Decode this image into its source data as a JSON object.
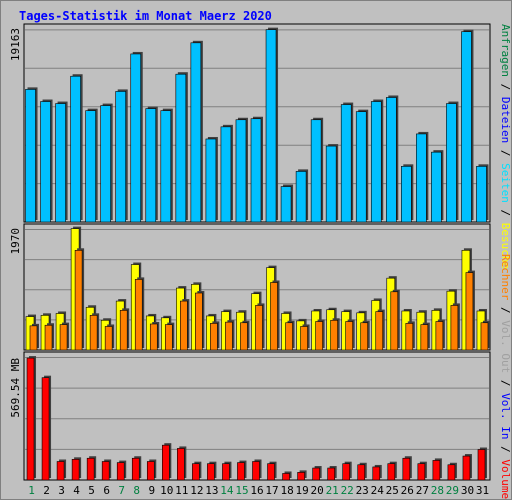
{
  "title": "Tages-Statistik im Monat Maerz 2020",
  "colors": {
    "background": "#c0c0c0",
    "grid": "#808080",
    "weekday_label": "#000000",
    "weekend_label": "#008040",
    "anfragen": "#00c0ff",
    "dateien": "#0000ff",
    "seiten": "#00e0ff",
    "besuche": "#ffff00",
    "rechner": "#ff8000",
    "vol_out": "#a0a0a0",
    "vol_in": "#0000ff",
    "volumen": "#ff0000"
  },
  "chart_data": [
    {
      "type": "bar",
      "panel": "top",
      "categories": [
        "1",
        "2",
        "3",
        "4",
        "5",
        "6",
        "7",
        "8",
        "9",
        "10",
        "11",
        "12",
        "13",
        "14",
        "15",
        "16",
        "17",
        "18",
        "19",
        "20",
        "21",
        "22",
        "23",
        "24",
        "25",
        "26",
        "27",
        "28",
        "29",
        "30",
        "31"
      ],
      "weekend_days": [
        "1",
        "7",
        "8",
        "14",
        "15",
        "21",
        "22",
        "28",
        "29"
      ],
      "y_tick_label": "19163",
      "ymax": 19163,
      "ylim": [
        0,
        19163
      ],
      "series": [
        {
          "name": "Anfragen",
          "values": [
            13100,
            11900,
            11700,
            14400,
            11000,
            11500,
            12900,
            16600,
            11200,
            11000,
            14600,
            17700,
            8200,
            9400,
            10100,
            10200,
            19000,
            3500,
            5000,
            10100,
            7500,
            11600,
            10900,
            11900,
            12300,
            5500,
            8700,
            6900,
            11700,
            18800,
            5500
          ]
        }
      ],
      "side_labels": [
        {
          "text": "Anfragen",
          "color": "#008040"
        },
        {
          "text": " / ",
          "color": "#000000"
        },
        {
          "text": "Dateien",
          "color": "#0000ff"
        },
        {
          "text": " / ",
          "color": "#000000"
        },
        {
          "text": "Seiten",
          "color": "#00e0ff"
        },
        {
          "text": " / ",
          "color": "#000000"
        },
        {
          "text": "Besuche",
          "color": "#ffff00"
        }
      ]
    },
    {
      "type": "bar",
      "panel": "middle",
      "y_tick_label": "1970",
      "ymax": 1970,
      "ylim": [
        0,
        1970
      ],
      "series": [
        {
          "name": "Besuche",
          "values": [
            540,
            560,
            590,
            1960,
            690,
            480,
            790,
            1380,
            550,
            520,
            1000,
            1060,
            550,
            620,
            610,
            910,
            1330,
            590,
            470,
            630,
            650,
            620,
            600,
            800,
            1160,
            630,
            610,
            640,
            950,
            1610,
            630
          ]
        },
        {
          "name": "Rechner",
          "values": [
            390,
            400,
            410,
            1610,
            560,
            380,
            640,
            1140,
            420,
            410,
            790,
            920,
            430,
            450,
            440,
            720,
            1090,
            440,
            380,
            460,
            480,
            460,
            440,
            620,
            940,
            430,
            410,
            460,
            720,
            1250,
            440
          ]
        }
      ],
      "side_labels": [
        {
          "text": "Rechner",
          "color": "#ff8000"
        },
        {
          "text": " / ",
          "color": "#000000"
        },
        {
          "text": "Vol. Out",
          "color": "#a0a0a0"
        },
        {
          "text": " / ",
          "color": "#000000"
        },
        {
          "text": "Vol. In",
          "color": "#0000ff"
        },
        {
          "text": " / ",
          "color": "#000000"
        },
        {
          "text": "Volumen",
          "color": "#ff0000"
        }
      ]
    },
    {
      "type": "bar",
      "panel": "bottom",
      "y_tick_label": "569.54 MB",
      "ymax": 569.54,
      "ylim": [
        0,
        569.54
      ],
      "ylabel": "MB",
      "series": [
        {
          "name": "Volumen",
          "values": [
            560,
            470,
            85,
            95,
            100,
            85,
            80,
            100,
            85,
            160,
            145,
            75,
            75,
            75,
            80,
            85,
            75,
            30,
            35,
            55,
            55,
            75,
            70,
            60,
            75,
            100,
            75,
            90,
            70,
            110,
            140
          ]
        }
      ]
    }
  ]
}
